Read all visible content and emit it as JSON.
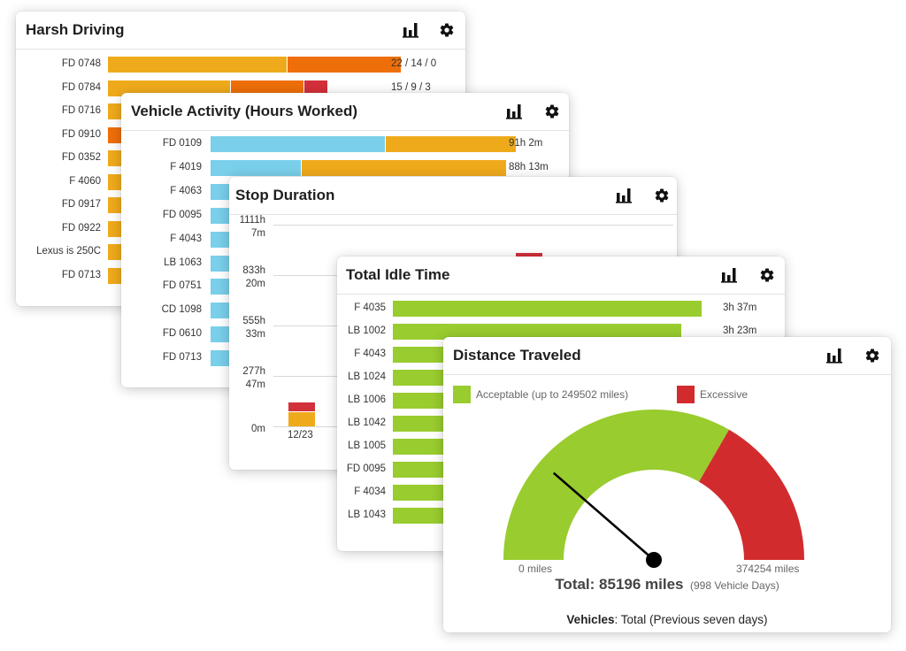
{
  "colors": {
    "orange": "#EFAA1C",
    "dark_orange": "#EE6F0A",
    "red": "#D2303A",
    "light_blue": "#7ACFEA",
    "green": "#99CC2E",
    "gauge_red": "#D22B2E"
  },
  "icons": {
    "chart": "bar-chart-icon",
    "settings": "gear-icon"
  },
  "harsh": {
    "title": "Harsh Driving",
    "rows": [
      {
        "label": "FD 0748",
        "value": "22 / 14 / 0",
        "segments": [
          22,
          14,
          0
        ]
      },
      {
        "label": "FD 0784",
        "value": "15 / 9 / 3",
        "segments": [
          15,
          9,
          3
        ]
      },
      {
        "label": "FD 0716",
        "value": "",
        "segments": []
      },
      {
        "label": "FD 0910",
        "value": "",
        "segments": []
      },
      {
        "label": "FD 0352",
        "value": "",
        "segments": []
      },
      {
        "label": "F 4060",
        "value": "",
        "segments": []
      },
      {
        "label": "FD 0917",
        "value": "",
        "segments": []
      },
      {
        "label": "FD 0922",
        "value": "",
        "segments": []
      },
      {
        "label": "Lexus is 250C",
        "value": "",
        "segments": []
      },
      {
        "label": "FD 0713",
        "value": "",
        "segments": []
      }
    ]
  },
  "activity": {
    "title": "Vehicle Activity (Hours Worked)",
    "rows": [
      {
        "label": "FD 0109",
        "value": "91h 2m",
        "segments": [
          52,
          39
        ]
      },
      {
        "label": "F 4019",
        "value": "88h 13m",
        "segments": [
          27,
          61
        ]
      },
      {
        "label": "F 4063",
        "value": "",
        "segments": []
      },
      {
        "label": "FD 0095",
        "value": "",
        "segments": []
      },
      {
        "label": "F 4043",
        "value": "",
        "segments": []
      },
      {
        "label": "LB 1063",
        "value": "",
        "segments": []
      },
      {
        "label": "FD 0751",
        "value": "",
        "segments": []
      },
      {
        "label": "CD 1098",
        "value": "",
        "segments": []
      },
      {
        "label": "FD 0610",
        "value": "",
        "segments": []
      },
      {
        "label": "FD 0713",
        "value": "",
        "segments": []
      }
    ]
  },
  "stop": {
    "title": "Stop Duration",
    "y_ticks": [
      {
        "line1": "1111h",
        "line2": "7m"
      },
      {
        "line1": "833h",
        "line2": "20m"
      },
      {
        "line1": "555h",
        "line2": "33m"
      },
      {
        "line1": "277h",
        "line2": "47m"
      },
      {
        "line1": "0m",
        "line2": ""
      }
    ],
    "x_label": "12/23"
  },
  "idle": {
    "title": "Total Idle Time",
    "rows": [
      {
        "label": "F 4035",
        "value": "3h 37m",
        "fraction": 1.0
      },
      {
        "label": "LB 1002",
        "value": "3h 23m",
        "fraction": 0.935
      },
      {
        "label": "F 4043",
        "value": "",
        "fraction": 0
      },
      {
        "label": "LB 1024",
        "value": "",
        "fraction": 0
      },
      {
        "label": "LB 1006",
        "value": "",
        "fraction": 0
      },
      {
        "label": "LB 1042",
        "value": "",
        "fraction": 0
      },
      {
        "label": "LB 1005",
        "value": "",
        "fraction": 0
      },
      {
        "label": "FD 0095",
        "value": "",
        "fraction": 0
      },
      {
        "label": "F 4034",
        "value": "",
        "fraction": 0
      },
      {
        "label": "LB 1043",
        "value": "",
        "fraction": 0
      }
    ]
  },
  "distance": {
    "title": "Distance Traveled",
    "legend_acceptable": "Acceptable (up to 249502 miles)",
    "legend_excessive": "Excessive",
    "gauge_min": "0 miles",
    "gauge_max": "374254 miles",
    "total_label": "Total: 85196 miles",
    "total_sub": "(998 Vehicle Days)",
    "footer_bold": "Vehicles",
    "footer_rest": ": Total (Previous seven days)"
  },
  "chart_data": [
    {
      "type": "bar",
      "title": "Harsh Driving",
      "categories": [
        "FD 0748",
        "FD 0784"
      ],
      "series": [
        {
          "values": [
            22,
            15
          ]
        },
        {
          "values": [
            14,
            9
          ]
        },
        {
          "values": [
            0,
            3
          ]
        }
      ]
    },
    {
      "type": "bar",
      "title": "Vehicle Activity (Hours Worked)",
      "categories": [
        "FD 0109",
        "F 4019"
      ],
      "values_text": [
        "91h 2m",
        "88h 13m"
      ]
    },
    {
      "type": "bar",
      "title": "Stop Duration",
      "categories": [
        "12/23"
      ],
      "y_ticks": [
        "0m",
        "277h 47m",
        "555h 33m",
        "833h 20m",
        "1111h 7m"
      ]
    },
    {
      "type": "bar",
      "title": "Total Idle Time",
      "categories": [
        "F 4035",
        "LB 1002"
      ],
      "values_text": [
        "3h 37m",
        "3h 23m"
      ]
    },
    {
      "type": "gauge",
      "title": "Distance Traveled",
      "min": 0,
      "max": 374254,
      "acceptable_max": 249502,
      "value": 85196
    }
  ]
}
